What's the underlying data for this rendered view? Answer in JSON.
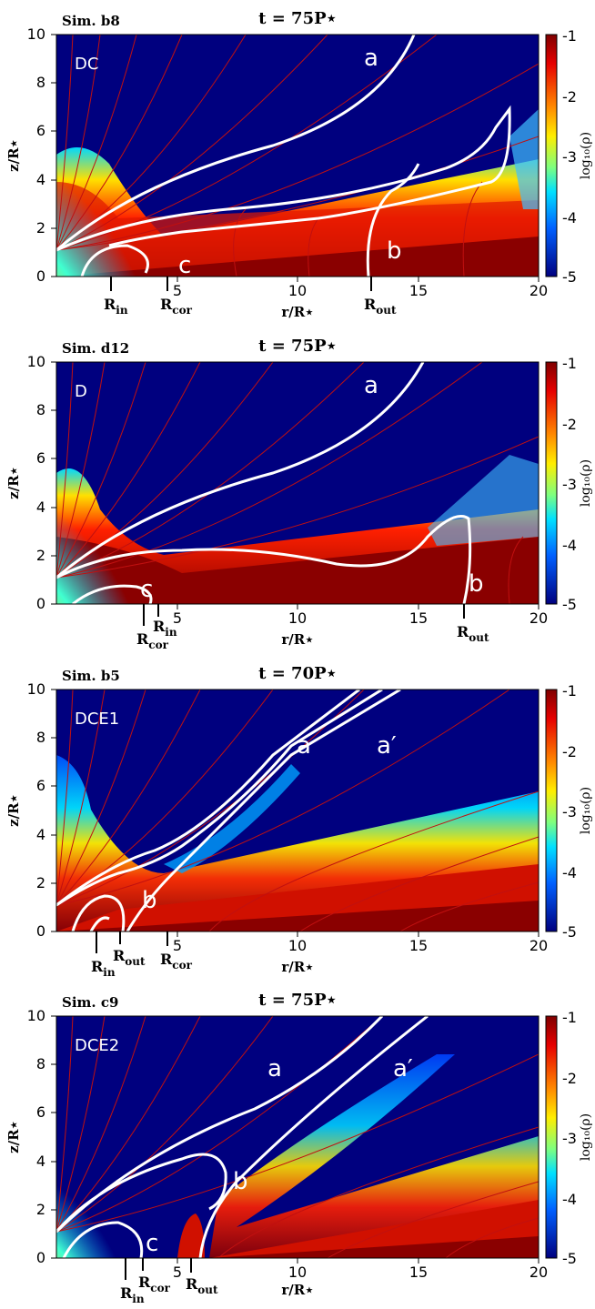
{
  "figure": {
    "axis": {
      "xlabel": "r/R⋆",
      "ylabel": "z/R⋆",
      "xlim": [
        0,
        20
      ],
      "ylim": [
        0,
        10
      ],
      "xticks": [
        "5",
        "10",
        "15",
        "20"
      ],
      "yticks": [
        "0",
        "2",
        "4",
        "6",
        "8",
        "10"
      ]
    },
    "colorbar": {
      "label": "log₁₀(ρ)",
      "range": [
        -5,
        -1
      ],
      "ticks": [
        "-1",
        "-2",
        "-3",
        "-4",
        "-5"
      ]
    },
    "panels": [
      {
        "sim": "Sim. b8",
        "time": "t = 75P⋆",
        "model": "DC",
        "curve_labels": [
          "a",
          "b",
          "c"
        ],
        "markers": [
          {
            "main": "R",
            "sub": "in",
            "r": 3.1
          },
          {
            "main": "R",
            "sub": "cor",
            "r": 4.7
          },
          {
            "main": "R",
            "sub": "out",
            "r": 13.2
          }
        ]
      },
      {
        "sim": "Sim. d12",
        "time": "t = 75P⋆",
        "model": "D",
        "curve_labels": [
          "a",
          "b",
          "c"
        ],
        "markers": [
          {
            "main": "R",
            "sub": "cor",
            "r": 4.0
          },
          {
            "main": "R",
            "sub": "in",
            "r": 4.5
          },
          {
            "main": "R",
            "sub": "out",
            "r": 16.5
          }
        ]
      },
      {
        "sim": "Sim. b5",
        "time": "t = 70P⋆",
        "model": "DCE1",
        "curve_labels": [
          "a",
          "a′",
          "b"
        ],
        "markers": [
          {
            "main": "R",
            "sub": "in",
            "r": 2.5
          },
          {
            "main": "R",
            "sub": "out",
            "r": 3.3
          },
          {
            "main": "R",
            "sub": "cor",
            "r": 4.7
          }
        ]
      },
      {
        "sim": "Sim. c9",
        "time": "t = 75P⋆",
        "model": "DCE2",
        "curve_labels": [
          "a",
          "a′",
          "b",
          "c"
        ],
        "markers": [
          {
            "main": "R",
            "sub": "in",
            "r": 3.5
          },
          {
            "main": "R",
            "sub": "cor",
            "r": 4.1
          },
          {
            "main": "R",
            "sub": "out",
            "r": 5.6
          }
        ]
      }
    ]
  }
}
